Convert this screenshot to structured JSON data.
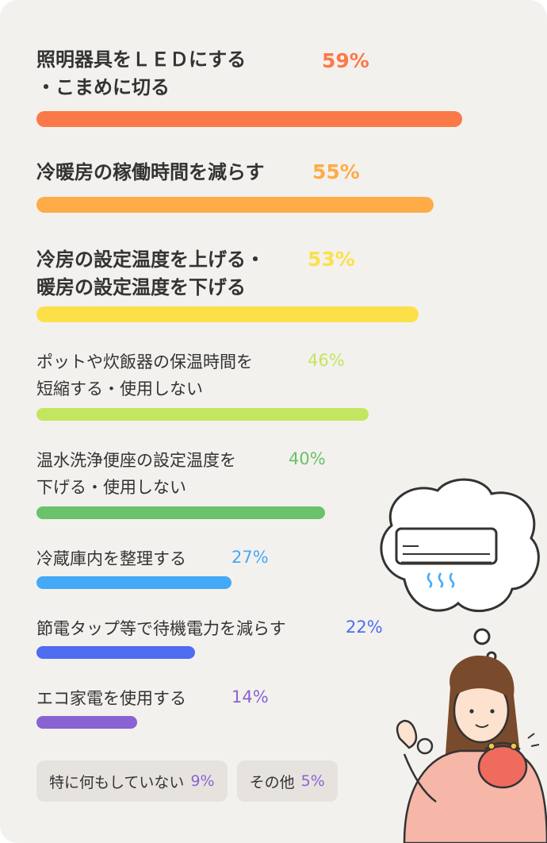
{
  "chart_data": {
    "type": "bar",
    "orientation": "horizontal",
    "unit": "%",
    "xlim": [
      0,
      100
    ],
    "grid": false,
    "categories": [
      "照明器具をＬＥＤにする\n・こまめに切る",
      "冷暖房の稼働時間を減らす",
      "冷房の設定温度を上げる・\n暖房の設定温度を下げる",
      "ポットや炊飯器の保温時間を\n短縮する・使用しない",
      "温水洗浄便座の設定温度を\n下げる・使用しない",
      "冷蔵庫内を整理する",
      "節電タップ等で待機電力を減らす",
      "エコ家電を使用する"
    ],
    "values": [
      59,
      55,
      53,
      46,
      40,
      27,
      22,
      14
    ],
    "value_labels": [
      "59%",
      "55%",
      "53%",
      "46%",
      "40%",
      "27%",
      "22%",
      "14%"
    ],
    "colors": [
      "#fb7948",
      "#fdac48",
      "#fce04a",
      "#c2e660",
      "#6ac26a",
      "#44a9f6",
      "#4f6cf1",
      "#8a63d2"
    ],
    "extras": [
      {
        "label": "特に何もしていない",
        "value": 9,
        "value_label": "9%"
      },
      {
        "label": "その他",
        "value": 5,
        "value_label": "5%"
      }
    ]
  },
  "colors": {
    "background": "#f3f1ee",
    "chip_background": "#e6e3df",
    "text": "#333333"
  },
  "illustration": {
    "icons": [
      "thought-bubble-icon",
      "air-conditioner-icon",
      "woman-icon",
      "purse-icon"
    ]
  }
}
